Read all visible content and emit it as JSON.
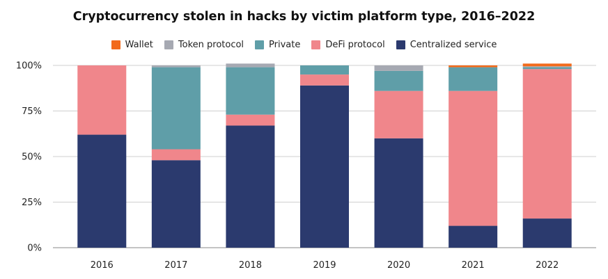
{
  "chart_data": {
    "type": "bar",
    "stacked": true,
    "percent": true,
    "title": "Cryptocurrency stolen in hacks by victim platform type, 2016–2022",
    "xlabel": "",
    "ylabel": "",
    "ylim": [
      0,
      100
    ],
    "yticks": [
      "0%",
      "25%",
      "50%",
      "75%",
      "100%"
    ],
    "grid": true,
    "legend_position": "top",
    "categories": [
      "2016",
      "2017",
      "2018",
      "2019",
      "2020",
      "2021",
      "2022"
    ],
    "series": [
      {
        "name": "Centralized service",
        "color": "#2b3a6e",
        "values": [
          62,
          48,
          67,
          89,
          60,
          12,
          16
        ]
      },
      {
        "name": "DeFi protocol",
        "color": "#f0868b",
        "values": [
          38,
          6,
          6,
          6,
          26,
          74,
          82
        ]
      },
      {
        "name": "Private",
        "color": "#5f9ea8",
        "values": [
          0,
          45,
          26,
          5,
          11,
          13,
          1
        ]
      },
      {
        "name": "Token protocol",
        "color": "#a6a9b2",
        "values": [
          0,
          1,
          2,
          0,
          3,
          0,
          0.5
        ]
      },
      {
        "name": "Wallet",
        "color": "#f26a1b",
        "values": [
          0,
          0,
          0,
          0,
          0,
          1,
          1.5
        ]
      }
    ],
    "legend_order": [
      "Wallet",
      "Token protocol",
      "Private",
      "DeFi protocol",
      "Centralized service"
    ]
  }
}
